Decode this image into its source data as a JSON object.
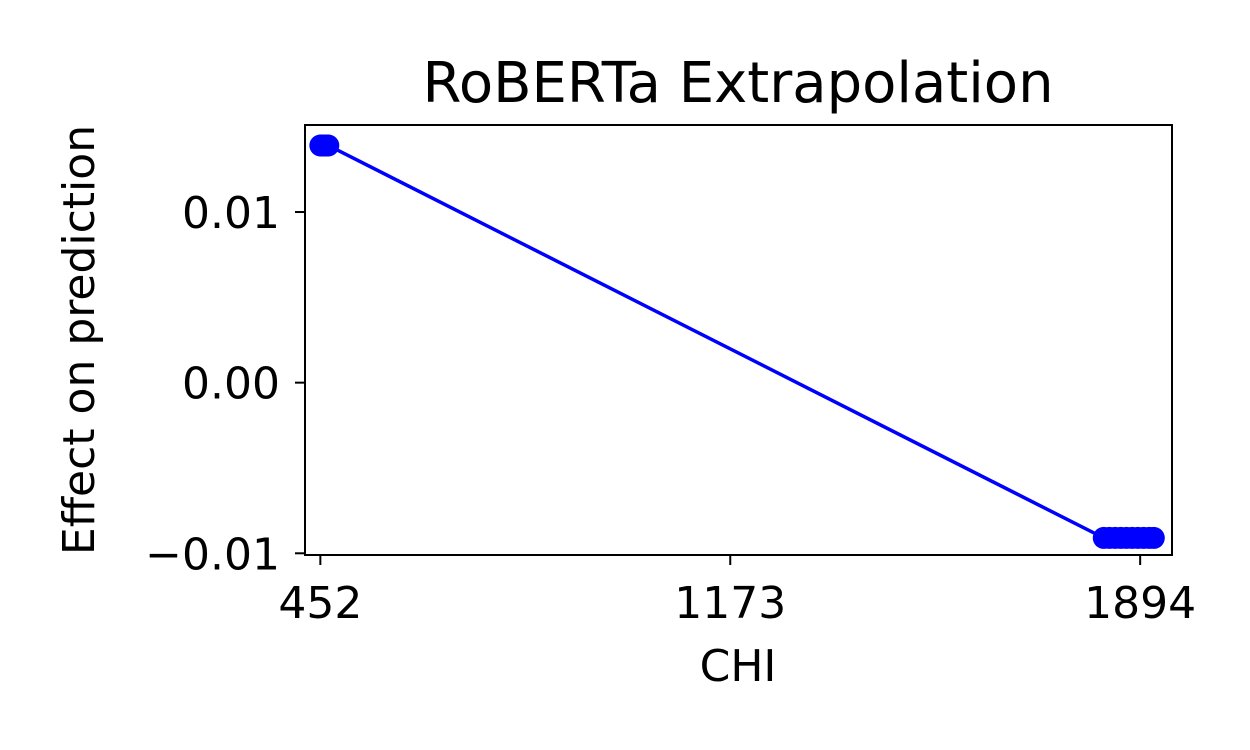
{
  "chart_data": {
    "type": "line",
    "title": "RoBERTa Extrapolation",
    "xlabel": "CHI",
    "ylabel": "Effect on prediction",
    "xlim": [
      425,
      1950
    ],
    "ylim": [
      -0.0101,
      0.0151
    ],
    "x_ticks": [
      452,
      1173,
      1894
    ],
    "x_tick_labels": [
      "452",
      "1173",
      "1894"
    ],
    "y_ticks": [
      -0.01,
      0.0,
      0.01
    ],
    "y_tick_labels": [
      "−0.01",
      "0.00",
      "0.01"
    ],
    "grid": false,
    "series": [
      {
        "color": "#0000ff",
        "marker": "circle",
        "points": [
          {
            "x": 452,
            "y": 0.0139
          },
          {
            "x": 454,
            "y": 0.0139
          },
          {
            "x": 456,
            "y": 0.0139
          },
          {
            "x": 458,
            "y": 0.0139
          },
          {
            "x": 460,
            "y": 0.0139
          },
          {
            "x": 462,
            "y": 0.0139
          },
          {
            "x": 464,
            "y": 0.0139
          },
          {
            "x": 466,
            "y": 0.0139
          },
          {
            "x": 1830,
            "y": -0.0091
          },
          {
            "x": 1840,
            "y": -0.0091
          },
          {
            "x": 1850,
            "y": -0.0091
          },
          {
            "x": 1860,
            "y": -0.0091
          },
          {
            "x": 1870,
            "y": -0.0091
          },
          {
            "x": 1880,
            "y": -0.0091
          },
          {
            "x": 1890,
            "y": -0.0091
          },
          {
            "x": 1900,
            "y": -0.0091
          },
          {
            "x": 1910,
            "y": -0.0091
          },
          {
            "x": 1918,
            "y": -0.0091
          }
        ]
      }
    ]
  }
}
